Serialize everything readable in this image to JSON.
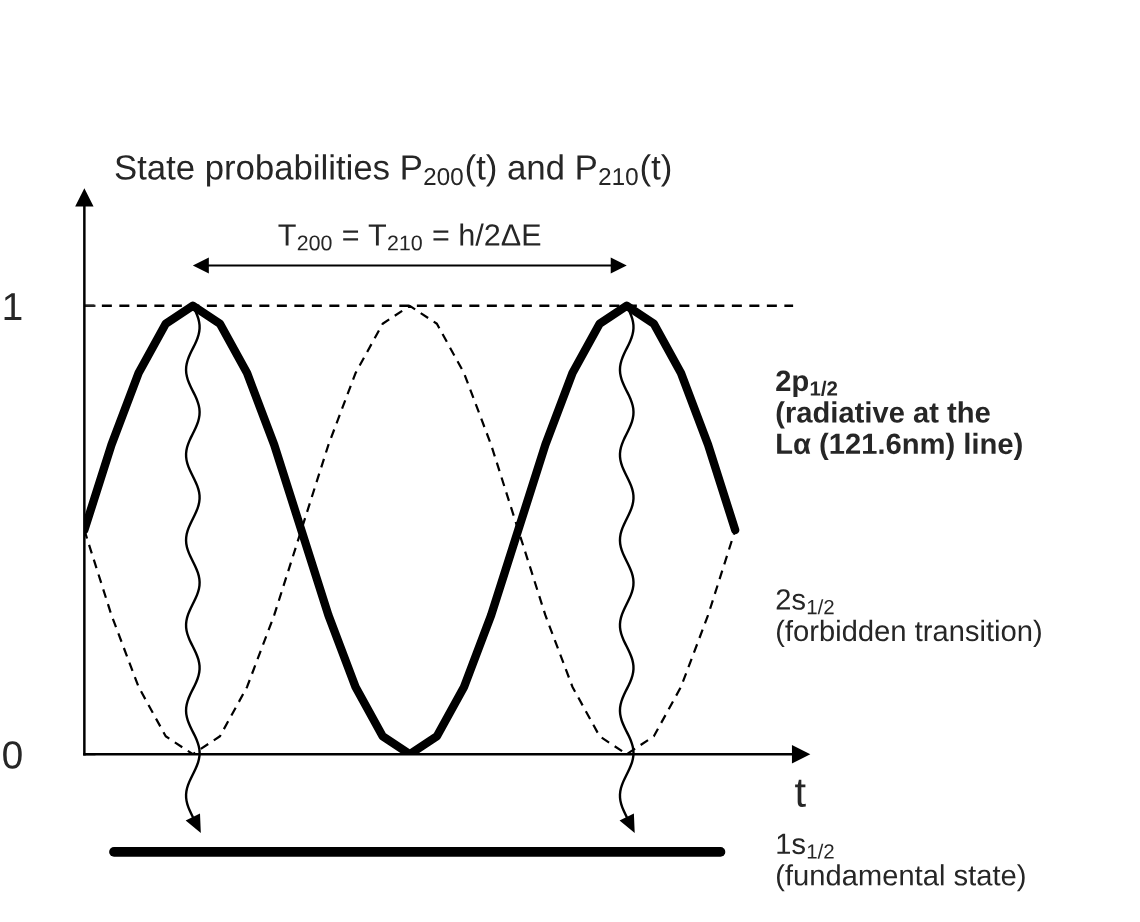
{
  "chart_data": {
    "type": "line",
    "title": "State probabilities P$_{200}$(t) and P$_{210}$(t)",
    "xlabel": "t",
    "categories": [
      null,
      null,
      null,
      null,
      null,
      null,
      null,
      null,
      null,
      null,
      null,
      null,
      null,
      null,
      null,
      null,
      null,
      null,
      null,
      null,
      null,
      null,
      null,
      null,
      null
    ],
    "series": [
      {
        "name": "2p$_{1/2}$\n(radiative at the\nLα (121.6nm) line)",
        "color": "#000000",
        "line_style": "solid",
        "values": [
          0.5,
          0.69,
          0.85,
          0.96,
          1,
          0.96,
          0.85,
          0.69,
          0.5,
          0.31,
          0.15,
          0.04,
          0,
          0.04,
          0.15,
          0.31,
          0.5,
          0.69,
          0.85,
          0.96,
          1,
          0.96,
          0.85,
          0.69,
          0.5
        ]
      },
      {
        "name": "2s$_{1/2}$\n(forbidden transition)",
        "color": "#000000",
        "line_style": "dashed",
        "values": [
          0.5,
          0.31,
          0.15,
          0.04,
          0,
          0.04,
          0.15,
          0.31,
          0.5,
          0.69,
          0.85,
          0.96,
          1,
          0.96,
          0.85,
          0.69,
          0.5,
          0.31,
          0.15,
          0.04,
          0,
          0.04,
          0.15,
          0.31,
          0.5
        ]
      }
    ],
    "ylim": [
      0,
      1.24
    ],
    "yticks": [
      0,
      1
    ],
    "ref_lines": [
      {
        "axis": "y",
        "value": 1,
        "color": "#000000",
        "line_style": "dashed"
      }
    ],
    "annotations": [
      "T$_{200}$ = T$_{210}$ = h/2ΔE",
      "1s$_{1/2}$\n(fundamental state)"
    ],
    "grid": false,
    "legend": false
  }
}
